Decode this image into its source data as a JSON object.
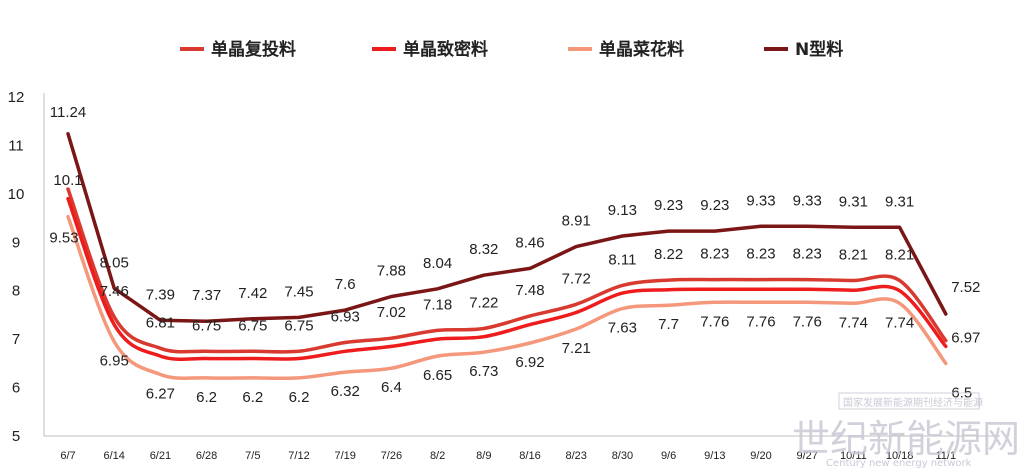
{
  "chart_data": {
    "type": "line",
    "title": "",
    "xlabel": "",
    "ylabel": "",
    "ylim": [
      5,
      12
    ],
    "yticks": [
      5,
      6,
      7,
      8,
      9,
      10,
      11,
      12
    ],
    "grid": false,
    "legend_position": "top",
    "categories": [
      "6/7",
      "6/14",
      "6/21",
      "6/28",
      "7/5",
      "7/12",
      "7/19",
      "7/26",
      "8/2",
      "8/9",
      "8/16",
      "8/23",
      "8/30",
      "9/6",
      "9/13",
      "9/20",
      "9/27",
      "10/11",
      "10/18",
      "11/1"
    ],
    "series": [
      {
        "name": "单晶复投料",
        "color": "#d93a30",
        "values": [
          10.1,
          7.46,
          6.81,
          6.75,
          6.75,
          6.75,
          6.93,
          7.02,
          7.18,
          7.22,
          7.48,
          7.72,
          8.11,
          8.22,
          8.23,
          8.23,
          8.23,
          8.21,
          8.21,
          6.97
        ],
        "labels": [
          "10.1",
          "7.46",
          "6.81",
          "6.75",
          "6.75",
          "6.75",
          "6.93",
          "7.02",
          "7.18",
          "7.22",
          "7.48",
          "7.72",
          "8.11",
          "8.22",
          "8.23",
          "8.23",
          "8.23",
          "8.21",
          "8.21",
          "6.97"
        ]
      },
      {
        "name": "单晶致密料",
        "color": "#ee1c1c",
        "values": [
          9.9,
          7.3,
          6.65,
          6.6,
          6.6,
          6.6,
          6.75,
          6.85,
          7.0,
          7.05,
          7.3,
          7.55,
          7.95,
          8.02,
          8.03,
          8.03,
          8.03,
          8.01,
          8.0,
          6.85
        ],
        "labels": []
      },
      {
        "name": "单晶菜花料",
        "color": "#f4977b",
        "values": [
          9.53,
          6.95,
          6.27,
          6.2,
          6.2,
          6.2,
          6.32,
          6.4,
          6.65,
          6.73,
          6.92,
          7.21,
          7.63,
          7.7,
          7.76,
          7.76,
          7.76,
          7.74,
          7.74,
          6.5
        ],
        "labels": [
          "9.53",
          "6.95",
          "6.27",
          "6.2",
          "6.2",
          "6.2",
          "6.32",
          "6.4",
          "6.65",
          "6.73",
          "6.92",
          "7.21",
          "7.63",
          "7.7",
          "7.76",
          "7.76",
          "7.76",
          "7.74",
          "7.74",
          "6.5"
        ]
      },
      {
        "name": "N型料",
        "color": "#7b1616",
        "values": [
          11.24,
          8.05,
          7.39,
          7.37,
          7.42,
          7.45,
          7.6,
          7.88,
          8.04,
          8.32,
          8.46,
          8.91,
          9.13,
          9.23,
          9.23,
          9.33,
          9.33,
          9.31,
          9.31,
          7.52
        ],
        "labels": [
          "11.24",
          "8.05",
          "7.39",
          "7.37",
          "7.42",
          "7.45",
          "7.6",
          "7.88",
          "8.04",
          "8.32",
          "8.46",
          "8.91",
          "9.13",
          "9.23",
          "9.23",
          "9.33",
          "9.33",
          "9.31",
          "9.31",
          "7.52"
        ]
      }
    ],
    "end_label_color": "#f0a020"
  },
  "watermark": {
    "small": "国家发展新能源期刊经济与能源",
    "large": "世纪新能源网",
    "english": "Century new energy network"
  }
}
